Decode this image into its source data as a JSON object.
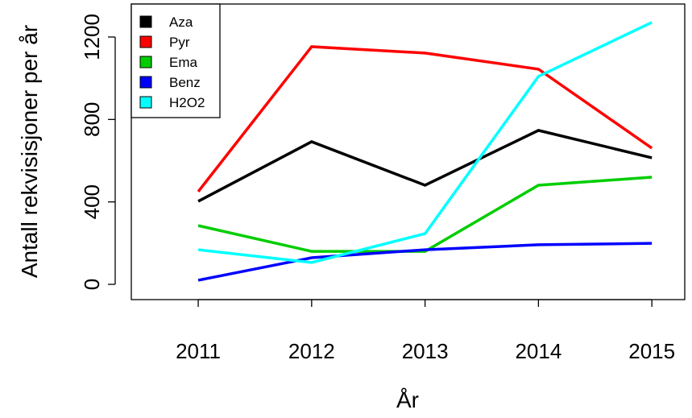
{
  "chart_data": {
    "type": "line",
    "x_label": "År",
    "y_label": "Antall rekvisisjoner per år",
    "x": [
      2011,
      2012,
      2013,
      2014,
      2015
    ],
    "series": [
      {
        "name": "Aza",
        "color": "#000000",
        "values": [
          403,
          692,
          481,
          747,
          614
        ]
      },
      {
        "name": "Pyr",
        "color": "#ff0000",
        "values": [
          450,
          1153,
          1122,
          1044,
          661
        ]
      },
      {
        "name": "Ema",
        "color": "#00cd00",
        "values": [
          285,
          160,
          160,
          481,
          520
        ]
      },
      {
        "name": "Benz",
        "color": "#0000ff",
        "values": [
          20,
          129,
          168,
          192,
          199
        ]
      },
      {
        "name": "H2O2",
        "color": "#00ffff",
        "values": [
          168,
          106,
          246,
          1009,
          1271
        ]
      }
    ],
    "xlim": [
      2010.41,
      2015.29
    ],
    "xticks": [
      2011,
      2012,
      2013,
      2014,
      2015
    ],
    "ylim": [
      -74,
      1360
    ],
    "yticks": [
      0,
      400,
      800,
      1200
    ],
    "legend": "top-left",
    "grid": false
  }
}
